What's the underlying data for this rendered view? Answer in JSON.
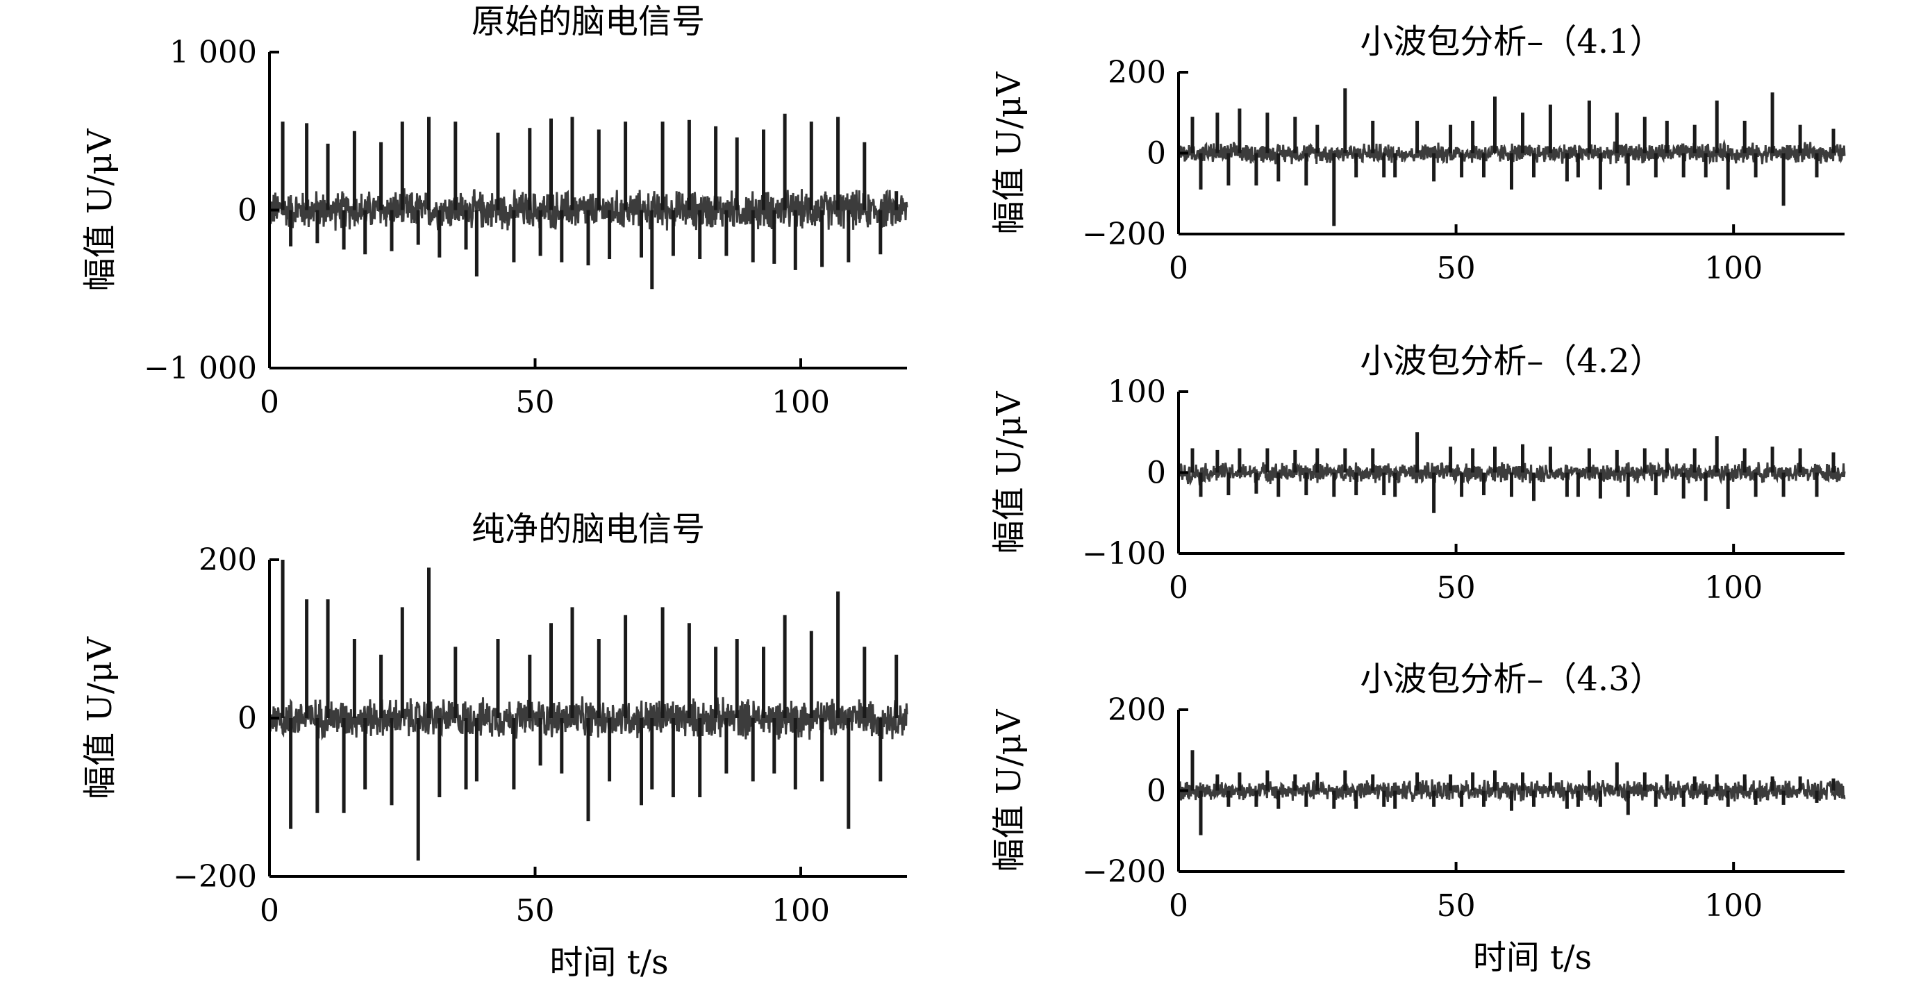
{
  "figure": {
    "xlabel": "时间 t/s"
  },
  "chart_data": [
    {
      "type": "line",
      "title": "原始的脑电信号",
      "xlabel": "",
      "ylabel": "幅值 U/μV",
      "xlim": [
        0,
        120
      ],
      "ylim": [
        -1000,
        1000
      ],
      "x_ticks": [
        0,
        50,
        100
      ],
      "y_ticks": [
        1000,
        0,
        -1000
      ],
      "x_tick_labels": [
        "0",
        "50",
        "100"
      ],
      "y_tick_labels": [
        "1 000",
        "0",
        "−1 000"
      ],
      "series_color": "#1a1a1a",
      "series": [
        {
          "x": [
            2.5,
            4,
            7,
            9,
            11,
            14,
            16,
            18,
            21,
            23,
            25,
            28,
            30,
            32,
            35,
            37,
            39,
            43,
            46,
            49,
            51,
            53,
            55,
            57,
            60,
            62,
            64,
            67,
            70,
            72,
            74,
            76,
            79,
            81,
            84,
            86,
            88,
            91,
            93,
            95,
            97,
            99,
            102,
            104,
            107,
            109,
            112,
            115,
            118
          ],
          "y": [
            560,
            -230,
            550,
            -210,
            420,
            -250,
            500,
            -280,
            430,
            -260,
            560,
            -220,
            590,
            -300,
            560,
            -250,
            -420,
            490,
            -330,
            520,
            -290,
            580,
            -330,
            590,
            -350,
            510,
            -310,
            560,
            -300,
            -500,
            560,
            -290,
            570,
            -310,
            530,
            -290,
            460,
            -330,
            510,
            -340,
            610,
            -380,
            560,
            -360,
            590,
            -330,
            430,
            -280,
            120
          ]
        }
      ]
    },
    {
      "type": "line",
      "title": "纯净的脑电信号",
      "xlabel": "时间 t/s",
      "ylabel": "幅值 U/μV",
      "xlim": [
        0,
        120
      ],
      "ylim": [
        -200,
        200
      ],
      "x_ticks": [
        0,
        50,
        100
      ],
      "y_ticks": [
        200,
        0,
        -200
      ],
      "x_tick_labels": [
        "0",
        "50",
        "100"
      ],
      "y_tick_labels": [
        "200",
        "0",
        "−200"
      ],
      "series_color": "#1a1a1a",
      "series": [
        {
          "x": [
            2.5,
            4,
            7,
            9,
            11,
            14,
            16,
            18,
            21,
            23,
            25,
            28,
            30,
            32,
            35,
            37,
            39,
            43,
            46,
            49,
            51,
            53,
            55,
            57,
            60,
            62,
            64,
            67,
            70,
            72,
            74,
            76,
            79,
            81,
            84,
            86,
            88,
            91,
            93,
            95,
            97,
            99,
            102,
            104,
            107,
            109,
            112,
            115,
            118
          ],
          "y": [
            200,
            -140,
            150,
            -120,
            150,
            -120,
            100,
            -90,
            80,
            -110,
            140,
            -180,
            190,
            -100,
            90,
            -90,
            -80,
            100,
            -90,
            80,
            -60,
            120,
            -70,
            140,
            -130,
            100,
            -80,
            130,
            -110,
            -90,
            140,
            -100,
            120,
            -100,
            90,
            -70,
            100,
            -80,
            90,
            -70,
            130,
            -90,
            110,
            -80,
            160,
            -140,
            90,
            -80,
            80
          ]
        }
      ]
    },
    {
      "type": "line",
      "title": "小波包分析–（4.1）",
      "xlabel": "",
      "ylabel": "幅值 U/μV",
      "xlim": [
        0,
        120
      ],
      "ylim": [
        -200,
        200
      ],
      "x_ticks": [
        0,
        50,
        100
      ],
      "y_ticks": [
        200,
        0,
        -200
      ],
      "x_tick_labels": [
        "0",
        "50",
        "100"
      ],
      "y_tick_labels": [
        "200",
        "0",
        "−200"
      ],
      "series_color": "#1a1a1a",
      "series": [
        {
          "x": [
            2.5,
            4,
            7,
            9,
            11,
            14,
            16,
            18,
            21,
            23,
            25,
            28,
            30,
            32,
            35,
            37,
            39,
            43,
            46,
            49,
            51,
            53,
            55,
            57,
            60,
            62,
            64,
            67,
            70,
            72,
            74,
            76,
            79,
            81,
            84,
            86,
            88,
            91,
            93,
            95,
            97,
            99,
            102,
            104,
            107,
            109,
            112,
            115,
            118
          ],
          "y": [
            90,
            -90,
            100,
            -80,
            110,
            -80,
            100,
            -70,
            90,
            -80,
            70,
            -180,
            160,
            -60,
            80,
            -60,
            -60,
            80,
            -70,
            70,
            -60,
            80,
            -60,
            140,
            -90,
            100,
            -60,
            120,
            -70,
            -60,
            130,
            -90,
            100,
            -80,
            90,
            -60,
            80,
            -60,
            70,
            -60,
            130,
            -90,
            80,
            -60,
            150,
            -130,
            70,
            -60,
            60
          ]
        }
      ]
    },
    {
      "type": "line",
      "title": "小波包分析–（4.2）",
      "xlabel": "",
      "ylabel": "幅值 U/μV",
      "xlim": [
        0,
        120
      ],
      "ylim": [
        -100,
        100
      ],
      "x_ticks": [
        0,
        50,
        100
      ],
      "y_ticks": [
        100,
        0,
        -100
      ],
      "x_tick_labels": [
        "0",
        "50",
        "100"
      ],
      "y_tick_labels": [
        "100",
        "0",
        "−100"
      ],
      "series_color": "#1a1a1a",
      "series": [
        {
          "x": [
            2.5,
            4,
            7,
            9,
            11,
            14,
            16,
            18,
            21,
            23,
            25,
            28,
            30,
            32,
            35,
            37,
            39,
            43,
            46,
            49,
            51,
            53,
            55,
            57,
            60,
            62,
            64,
            67,
            70,
            72,
            74,
            76,
            79,
            81,
            84,
            86,
            88,
            91,
            93,
            95,
            97,
            99,
            102,
            104,
            107,
            109,
            112,
            115,
            118
          ],
          "y": [
            30,
            -30,
            28,
            -28,
            30,
            -26,
            30,
            -30,
            28,
            -28,
            30,
            -30,
            30,
            -28,
            30,
            -28,
            -30,
            50,
            -50,
            32,
            -30,
            30,
            -28,
            32,
            -30,
            35,
            -35,
            32,
            -30,
            -30,
            30,
            -32,
            28,
            -30,
            30,
            -28,
            30,
            -32,
            30,
            -35,
            45,
            -45,
            30,
            -30,
            32,
            -30,
            30,
            -30,
            25
          ]
        }
      ]
    },
    {
      "type": "line",
      "title": "小波包分析–（4.3）",
      "xlabel": "时间 t/s",
      "ylabel": "幅值 U/μV",
      "xlim": [
        0,
        120
      ],
      "ylim": [
        -200,
        200
      ],
      "x_ticks": [
        0,
        50,
        100
      ],
      "y_ticks": [
        200,
        0,
        -200
      ],
      "x_tick_labels": [
        "0",
        "50",
        "100"
      ],
      "y_tick_labels": [
        "200",
        "0",
        "−200"
      ],
      "series_color": "#1a1a1a",
      "series": [
        {
          "x": [
            2.5,
            4,
            7,
            9,
            11,
            14,
            16,
            18,
            21,
            23,
            25,
            28,
            30,
            32,
            35,
            37,
            39,
            43,
            46,
            49,
            51,
            53,
            55,
            57,
            60,
            62,
            64,
            67,
            70,
            72,
            74,
            76,
            79,
            81,
            84,
            86,
            88,
            91,
            93,
            95,
            97,
            99,
            102,
            104,
            107,
            109,
            112,
            115,
            118
          ],
          "y": [
            100,
            -110,
            40,
            -40,
            45,
            -40,
            50,
            -45,
            40,
            -40,
            45,
            -45,
            50,
            -45,
            40,
            -40,
            -45,
            45,
            -40,
            40,
            -40,
            45,
            -40,
            50,
            -50,
            45,
            -40,
            45,
            -45,
            -40,
            50,
            -40,
            70,
            -60,
            45,
            -40,
            40,
            -40,
            35,
            -35,
            40,
            -40,
            40,
            -35,
            35,
            -35,
            35,
            -30,
            30
          ]
        }
      ]
    }
  ]
}
